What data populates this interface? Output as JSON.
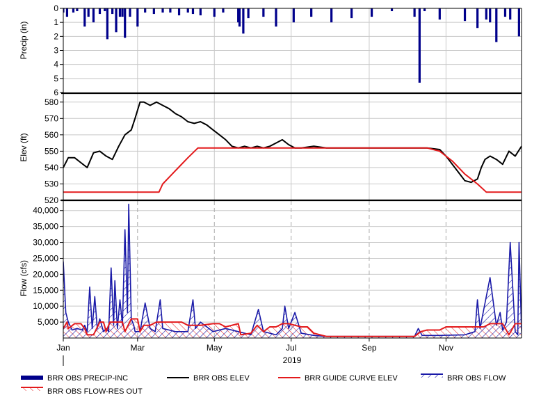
{
  "colors": {
    "precip": "#00008b",
    "elev": "#000000",
    "guide": "#e31a1c",
    "flow": "#1a1aa8",
    "resout": "#e31a1c",
    "grid": "#c8c8c8",
    "dash": "#aaaaaa"
  },
  "chart_data": [
    {
      "type": "bar",
      "name": "precip",
      "ylabel": "Precip (in)",
      "ylim": [
        0,
        6
      ],
      "inverted": true,
      "yticks": [
        "0",
        "1",
        "2",
        "3",
        "4",
        "5",
        "6"
      ],
      "series": [
        {
          "name": "BRR OBS PRECIP-INC",
          "x": [
            1,
            4,
            9,
            12,
            18,
            21,
            25,
            30,
            34,
            36,
            40,
            43,
            46,
            48,
            50,
            54,
            60,
            66,
            73,
            80,
            86,
            93,
            100,
            104,
            110,
            121,
            128,
            140,
            141,
            144,
            148,
            160,
            170,
            184,
            198,
            214,
            230,
            246,
            262,
            280,
            284,
            288,
            300,
            320,
            330,
            337,
            340,
            345,
            352,
            356,
            363
          ],
          "values": [
            0.3,
            0.6,
            0.3,
            0.2,
            1.3,
            0.6,
            1.0,
            0.4,
            0.2,
            2.2,
            0.4,
            1.7,
            0.6,
            0.6,
            2.1,
            0.6,
            1.3,
            0.3,
            0.4,
            0.3,
            0.3,
            0.5,
            0.3,
            0.4,
            0.5,
            0.6,
            0.3,
            1.0,
            1.3,
            1.8,
            0.7,
            0.6,
            1.3,
            1.0,
            0.6,
            1.0,
            0.7,
            0.6,
            0.2,
            0.6,
            5.3,
            0.2,
            0.8,
            0.9,
            1.4,
            0.8,
            1.0,
            2.4,
            0.6,
            0.8,
            2.0
          ]
        }
      ]
    },
    {
      "type": "line",
      "name": "elevation",
      "ylabel": "Elev (ft)",
      "ylim": [
        520,
        585
      ],
      "yticks": [
        "520",
        "530",
        "540",
        "550",
        "560",
        "570",
        "580"
      ],
      "series": [
        {
          "name": "BRR OBS ELEV",
          "x": [
            1,
            5,
            10,
            15,
            20,
            25,
            30,
            35,
            40,
            45,
            50,
            55,
            58,
            60,
            62,
            65,
            70,
            75,
            80,
            85,
            90,
            95,
            100,
            105,
            110,
            115,
            120,
            125,
            130,
            135,
            140,
            145,
            150,
            155,
            160,
            165,
            170,
            175,
            180,
            185,
            190,
            200,
            210,
            220,
            230,
            240,
            250,
            260,
            270,
            280,
            290,
            300,
            305,
            310,
            315,
            320,
            325,
            330,
            333,
            336,
            340,
            345,
            350,
            355,
            360,
            365
          ],
          "values": [
            540,
            546,
            546,
            543,
            540,
            549,
            550,
            547,
            545,
            553,
            560,
            563,
            570,
            575,
            580,
            580,
            578,
            580,
            578,
            576,
            573,
            571,
            568,
            567,
            568,
            566,
            563,
            560,
            557,
            553,
            552,
            553,
            552,
            553,
            552,
            553,
            555,
            557,
            554,
            552,
            552,
            553,
            552,
            552,
            552,
            552,
            552,
            552,
            552,
            552,
            552,
            551,
            547,
            542,
            537,
            532,
            531,
            533,
            540,
            545,
            547,
            545,
            542,
            550,
            547,
            553
          ]
        },
        {
          "name": "BRR GUIDE CURVE ELEV",
          "x": [
            1,
            77,
            80,
            90,
            100,
            108,
            150,
            200,
            250,
            290,
            300,
            310,
            320,
            330,
            337,
            365
          ],
          "values": [
            525,
            525,
            530,
            538,
            546,
            552,
            552,
            552,
            552,
            552,
            550,
            544,
            536,
            530,
            525,
            525
          ]
        }
      ]
    },
    {
      "type": "area",
      "name": "flow",
      "ylabel": "Flow (cfs)",
      "ylim": [
        0,
        43000
      ],
      "yticks": [
        "5,000",
        "10,000",
        "15,000",
        "20,000",
        "25,000",
        "30,000",
        "35,000",
        "40,000"
      ],
      "xlabel": "2019",
      "xticks": [
        {
          "label": "Jan",
          "day": 1
        },
        {
          "label": "Mar",
          "day": 60
        },
        {
          "label": "May",
          "day": 121
        },
        {
          "label": "Jul",
          "day": 182
        },
        {
          "label": "Sep",
          "day": 244
        },
        {
          "label": "Nov",
          "day": 305
        }
      ],
      "series": [
        {
          "name": "BRR OBS FLOW",
          "x": [
            1,
            3,
            5,
            8,
            12,
            16,
            18,
            20,
            22,
            24,
            26,
            28,
            30,
            33,
            35,
            37,
            39,
            41,
            42,
            44,
            46,
            48,
            50,
            52,
            53,
            55,
            57,
            58,
            60,
            62,
            66,
            70,
            74,
            78,
            80,
            85,
            90,
            100,
            104,
            106,
            110,
            120,
            130,
            140,
            150,
            156,
            160,
            170,
            175,
            177,
            180,
            185,
            190,
            200,
            210,
            220,
            230,
            240,
            260,
            280,
            283,
            286,
            300,
            320,
            328,
            330,
            332,
            340,
            345,
            348,
            350,
            353,
            356,
            360,
            362,
            363,
            365
          ],
          "values": [
            24000,
            8000,
            5000,
            2500,
            3000,
            2500,
            4000,
            2000,
            16000,
            3000,
            13000,
            3000,
            6000,
            2000,
            3000,
            2000,
            22000,
            4000,
            18000,
            3000,
            12000,
            4000,
            34000,
            8000,
            42000,
            6000,
            4000,
            2000,
            2000,
            2000,
            11000,
            3000,
            2000,
            12000,
            3000,
            2500,
            2000,
            2000,
            12000,
            3000,
            5000,
            2000,
            3000,
            2000,
            1000,
            9000,
            2000,
            1000,
            3000,
            10000,
            3000,
            8000,
            1500,
            800,
            500,
            500,
            500,
            500,
            500,
            500,
            3000,
            800,
            800,
            1000,
            2000,
            12000,
            3000,
            19000,
            4000,
            8000,
            2500,
            5000,
            30000,
            2000,
            1000,
            30000,
            2000
          ]
        },
        {
          "name": "BRR OBS FLOW-RES OUT",
          "x": [
            1,
            4,
            5,
            10,
            15,
            18,
            20,
            25,
            30,
            33,
            35,
            38,
            40,
            48,
            50,
            55,
            60,
            62,
            65,
            70,
            75,
            80,
            90,
            95,
            100,
            110,
            120,
            125,
            130,
            140,
            142,
            150,
            155,
            160,
            165,
            170,
            175,
            180,
            190,
            195,
            200,
            210,
            220,
            230,
            240,
            260,
            270,
            275,
            280,
            285,
            290,
            300,
            305,
            310,
            320,
            330,
            335,
            340,
            345,
            350,
            355,
            360,
            365
          ],
          "values": [
            3000,
            5000,
            3000,
            4500,
            4500,
            3000,
            1000,
            1000,
            5000,
            5000,
            2000,
            5000,
            5000,
            5000,
            2000,
            6000,
            6000,
            2000,
            4000,
            4000,
            5000,
            5000,
            5000,
            5000,
            4000,
            4000,
            4500,
            4500,
            3500,
            4500,
            1000,
            1500,
            4000,
            2000,
            3500,
            3500,
            4500,
            4500,
            3500,
            3500,
            1500,
            500,
            500,
            500,
            500,
            500,
            500,
            500,
            500,
            2000,
            2500,
            2500,
            3500,
            3500,
            3500,
            3500,
            3500,
            4500,
            4500,
            4500,
            1000,
            4500,
            4500
          ]
        }
      ]
    }
  ],
  "legend": [
    {
      "label": "BRR OBS PRECIP-INC",
      "style": "thickbar"
    },
    {
      "label": "BRR OBS ELEV",
      "style": "blackline"
    },
    {
      "label": "BRR GUIDE CURVE ELEV",
      "style": "redline"
    },
    {
      "label": "BRR OBS FLOW",
      "style": "bluehatch"
    },
    {
      "label": "BRR OBS FLOW-RES OUT",
      "style": "redhatch"
    }
  ]
}
